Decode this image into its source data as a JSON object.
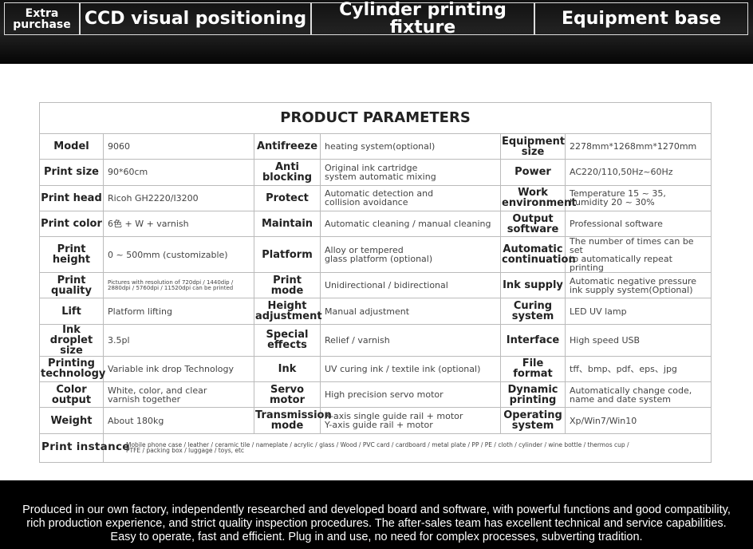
{
  "header": {
    "tabs": [
      "Extra\npurchase",
      "CCD visual positioning",
      "Cylinder printing fixture",
      "Equipment base"
    ]
  },
  "table": {
    "title": "PRODUCT PARAMETERS",
    "rows": [
      [
        "Model",
        "9060",
        "Antifreeze",
        "heating system(optional)",
        "Equipment\nsize",
        "2278mm*1268mm*1270mm"
      ],
      [
        "Print size",
        "90*60cm",
        "Anti blocking",
        "Original ink cartridge\nsystem automatic mixing",
        "Power",
        "AC220/110,50Hz~60Hz"
      ],
      [
        "Print head",
        "Ricoh GH2220/I3200",
        "Protect",
        "Automatic detection and\ncollision avoidance",
        "Work\nenvironment",
        "Temperature 15 ~ 35,\nhumidity 20 ~ 30%"
      ],
      [
        "Print color",
        "6色 + W + varnish",
        "Maintain",
        "Automatic cleaning / manual cleaning",
        "Output\nsoftware",
        "Professional software"
      ],
      [
        "Print height",
        "0 ~ 500mm (customizable)",
        "Platform",
        "Alloy or tempered\nglass platform (optional)",
        "Automatic\ncontinuation",
        "The number of times can be set\nto automatically repeat printing"
      ],
      [
        "Print quality",
        "Pictures with resolution of 720dpi / 1440dip /\n2880dpi / 5760dpi / 11520dpi can be printed",
        "Print mode",
        "Unidirectional / bidirectional",
        "Ink supply",
        "Automatic negative pressure\nink supply system(Optional)"
      ],
      [
        "Lift",
        "Platform lifting",
        "Height\nadjustment",
        "Manual adjustment",
        "Curing\nsystem",
        "LED UV lamp"
      ],
      [
        "Ink droplet\nsize",
        "3.5pl",
        "Special\neffects",
        "Relief / varnish",
        "Interface",
        "High speed USB"
      ],
      [
        "Printing\ntechnology",
        "Variable ink drop Technology",
        "Ink",
        "UV curing ink / textile ink (optional)",
        "File format",
        "tff、bmp、pdf、eps、jpg"
      ],
      [
        "Color output",
        "White, color, and clear\nvarnish  together",
        "Servo\nmotor",
        "High precision servo motor",
        "Dynamic\nprinting",
        "Automatically change code,\nname and date system"
      ],
      [
        "Weight",
        "About 180kg",
        "Transmission\nmode",
        "X-axis single guide rail + motor\nY-axis  guide rail + motor",
        "Operating\nsystem",
        "Xp/Win7/Win10"
      ]
    ],
    "instance": {
      "label": "Print instance",
      "value": "Mobile phone case / leather / ceramic tile / nameplate / acrylic / glass / Wood / PVC card / cardboard / metal plate / PP / PE / cloth / cylinder / wine bottle / thermos cup /\nPTFE / packing box / luggage / toys, etc"
    }
  },
  "footer": {
    "lines": [
      "Produced in our own factory, independently researched and developed board and software, with powerful functions and good compatibility,",
      "rich production experience, and strict quality inspection procedures. The after-sales team has excellent technical and service capabilities.",
      "Easy to operate, fast and efficient. Plug in and use, no need for complex processes, subverting tradition."
    ]
  }
}
